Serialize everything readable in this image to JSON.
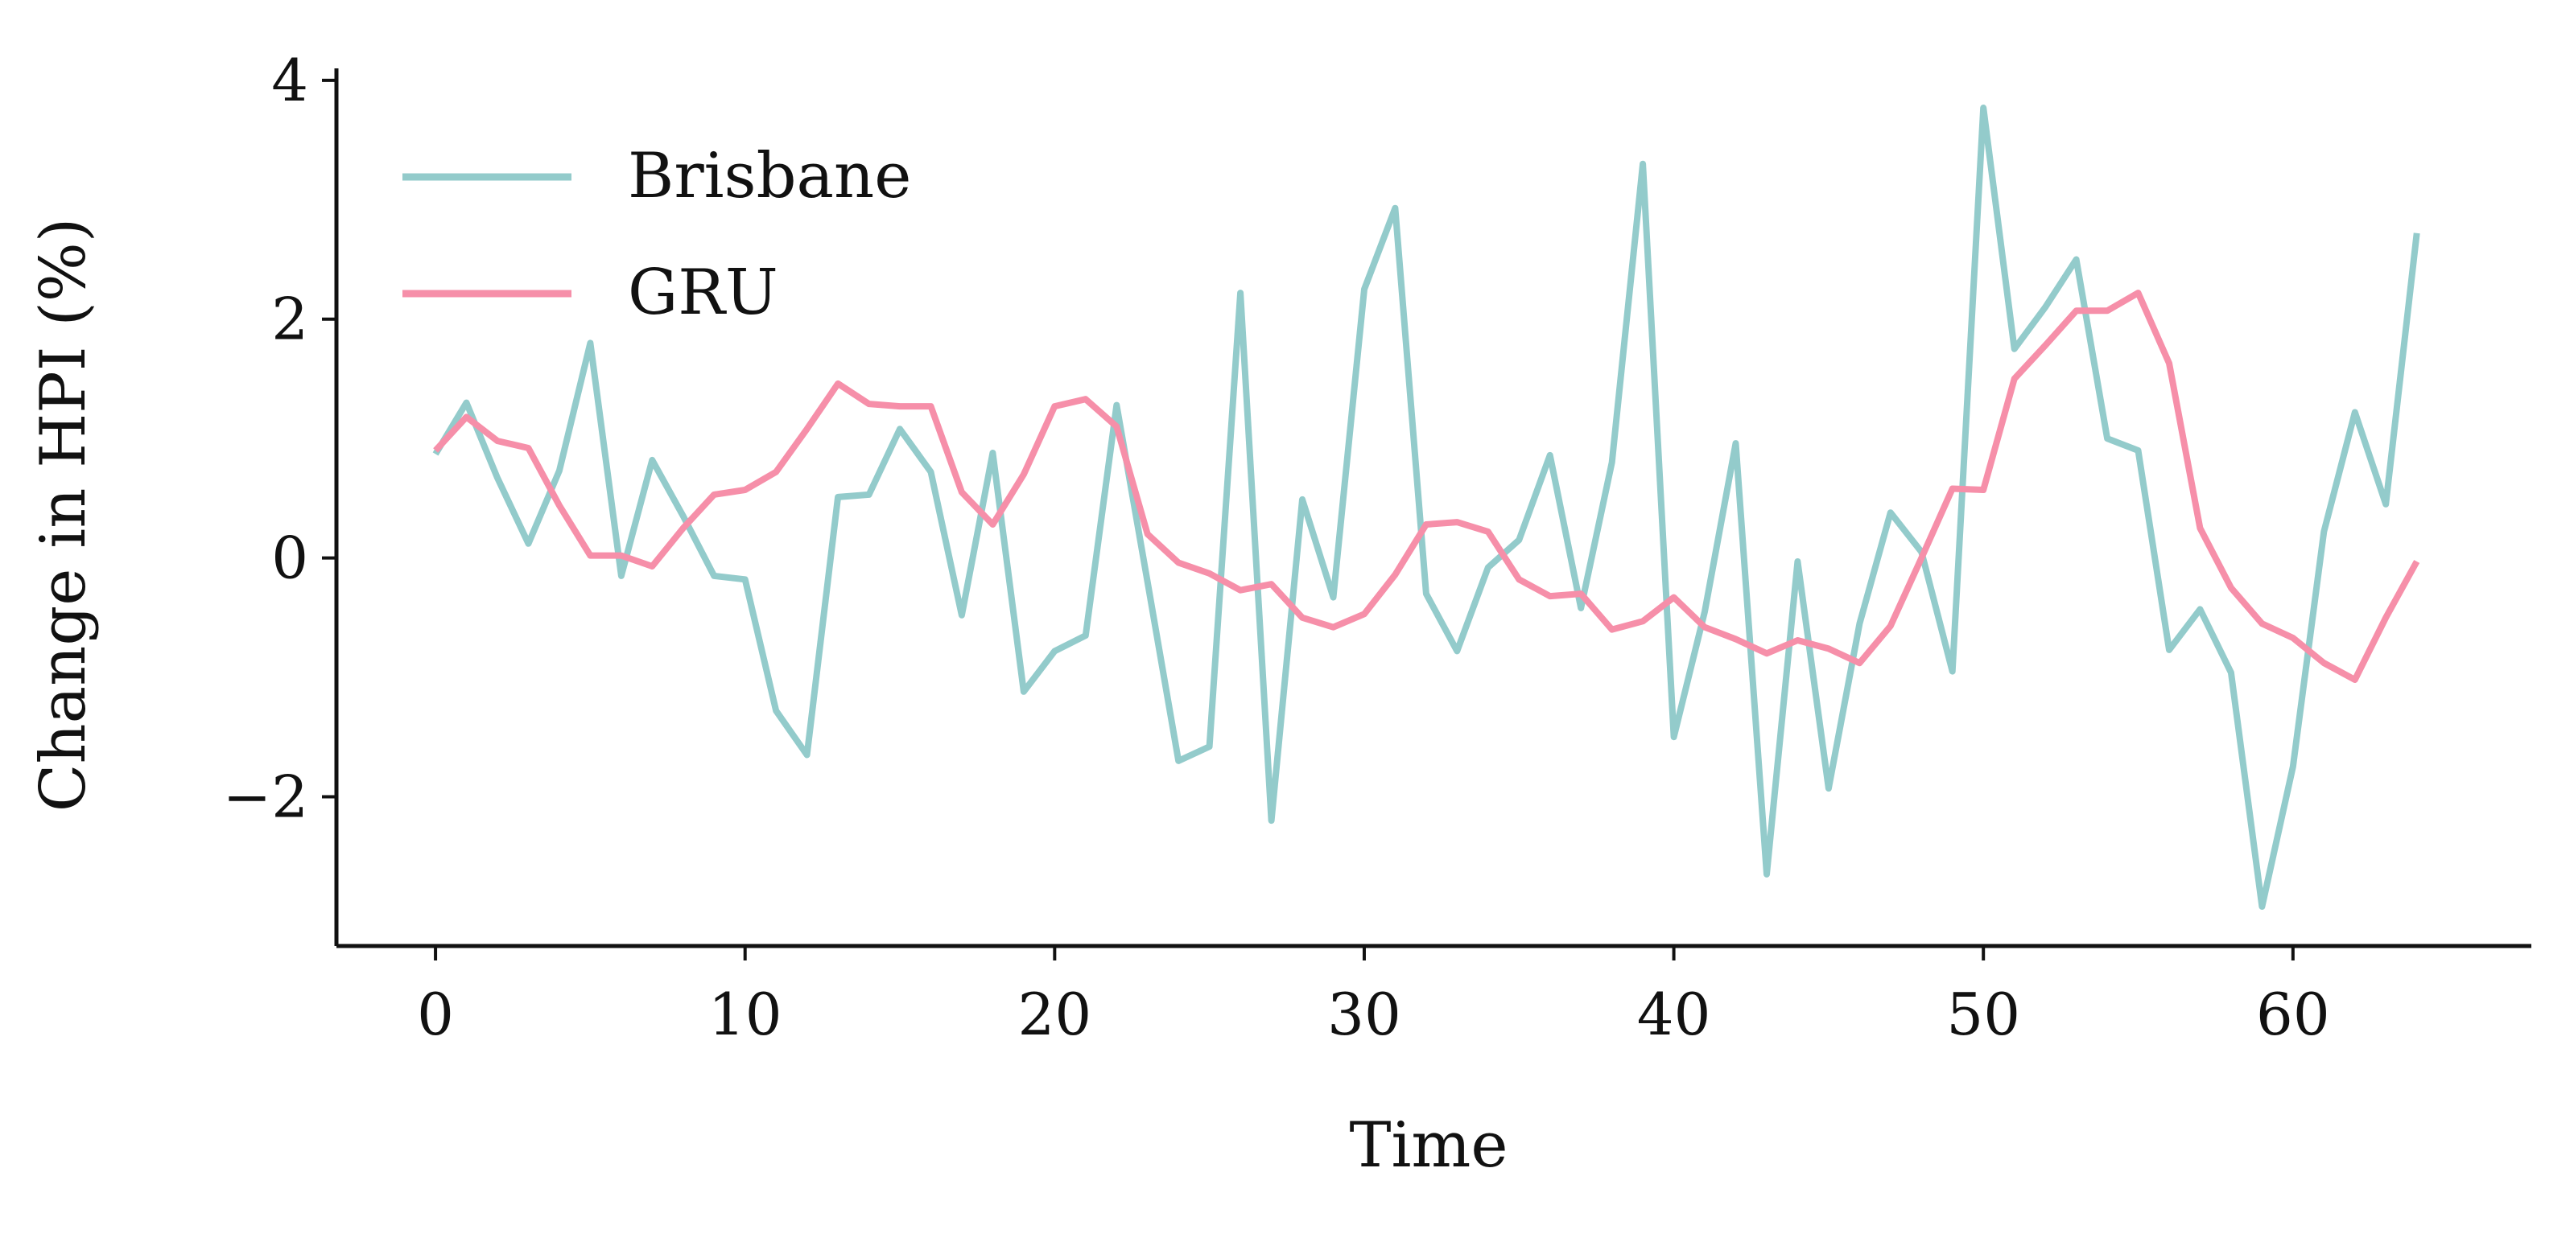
{
  "chart_data": {
    "type": "line",
    "title": "",
    "xlabel": "Time",
    "ylabel": "Change in HPI (%)",
    "xlim": [
      -3.2,
      67.7
    ],
    "ylim": [
      -3.25,
      4.1
    ],
    "x_ticks": [
      0,
      10,
      20,
      30,
      40,
      50,
      60
    ],
    "x_tick_labels": [
      "0",
      "10",
      "20",
      "30",
      "40",
      "50",
      "60"
    ],
    "y_ticks": [
      -2,
      0,
      2,
      4
    ],
    "y_tick_labels": [
      "−2",
      "0",
      "2",
      "4"
    ],
    "grid": false,
    "legend_position": "top-left",
    "x": [
      0,
      1,
      2,
      3,
      4,
      5,
      6,
      7,
      8,
      9,
      10,
      11,
      12,
      13,
      14,
      15,
      16,
      17,
      18,
      19,
      20,
      21,
      22,
      23,
      24,
      25,
      26,
      27,
      28,
      29,
      30,
      31,
      32,
      33,
      34,
      35,
      36,
      37,
      38,
      39,
      40,
      41,
      42,
      43,
      44,
      45,
      46,
      47,
      48,
      49,
      50,
      51,
      52,
      53,
      54,
      55,
      56,
      57,
      58,
      59,
      60,
      61,
      62,
      63,
      64
    ],
    "series": [
      {
        "name": "Brisbane",
        "color": "#93cbcb",
        "values": [
          0.87,
          1.3,
          0.67,
          0.12,
          0.73,
          1.8,
          -0.15,
          0.82,
          0.35,
          -0.15,
          -0.18,
          -1.28,
          -1.65,
          0.51,
          0.53,
          1.08,
          0.72,
          -0.48,
          0.88,
          -1.12,
          -0.78,
          -0.65,
          1.28,
          -0.2,
          -1.7,
          -1.58,
          2.22,
          -2.2,
          0.49,
          -0.33,
          2.25,
          2.93,
          -0.3,
          -0.78,
          -0.08,
          0.15,
          0.86,
          -0.42,
          0.8,
          3.3,
          -1.5,
          -0.45,
          0.96,
          -2.65,
          -0.03,
          -1.93,
          -0.55,
          0.38,
          0.05,
          -0.95,
          3.77,
          1.75,
          2.1,
          2.5,
          1.0,
          0.9,
          -0.77,
          -0.43,
          -0.96,
          -2.92,
          -1.75,
          0.22,
          1.22,
          0.45,
          2.72
        ]
      },
      {
        "name": "GRU",
        "color": "#f68fa9",
        "values": [
          0.9,
          1.18,
          0.98,
          0.92,
          0.44,
          0.02,
          0.02,
          -0.07,
          0.25,
          0.53,
          0.57,
          0.72,
          1.08,
          1.46,
          1.29,
          1.27,
          1.27,
          0.55,
          0.28,
          0.7,
          1.27,
          1.33,
          1.1,
          0.2,
          -0.04,
          -0.13,
          -0.27,
          -0.22,
          -0.5,
          -0.58,
          -0.47,
          -0.14,
          0.28,
          0.3,
          0.22,
          -0.18,
          -0.32,
          -0.3,
          -0.6,
          -0.53,
          -0.33,
          -0.58,
          -0.68,
          -0.8,
          -0.69,
          -0.76,
          -0.88,
          -0.57,
          0.0,
          0.58,
          0.57,
          1.5,
          1.78,
          2.07,
          2.07,
          2.22,
          1.63,
          0.25,
          -0.25,
          -0.55,
          -0.67,
          -0.88,
          -1.02,
          -0.5,
          -0.03
        ]
      }
    ]
  }
}
